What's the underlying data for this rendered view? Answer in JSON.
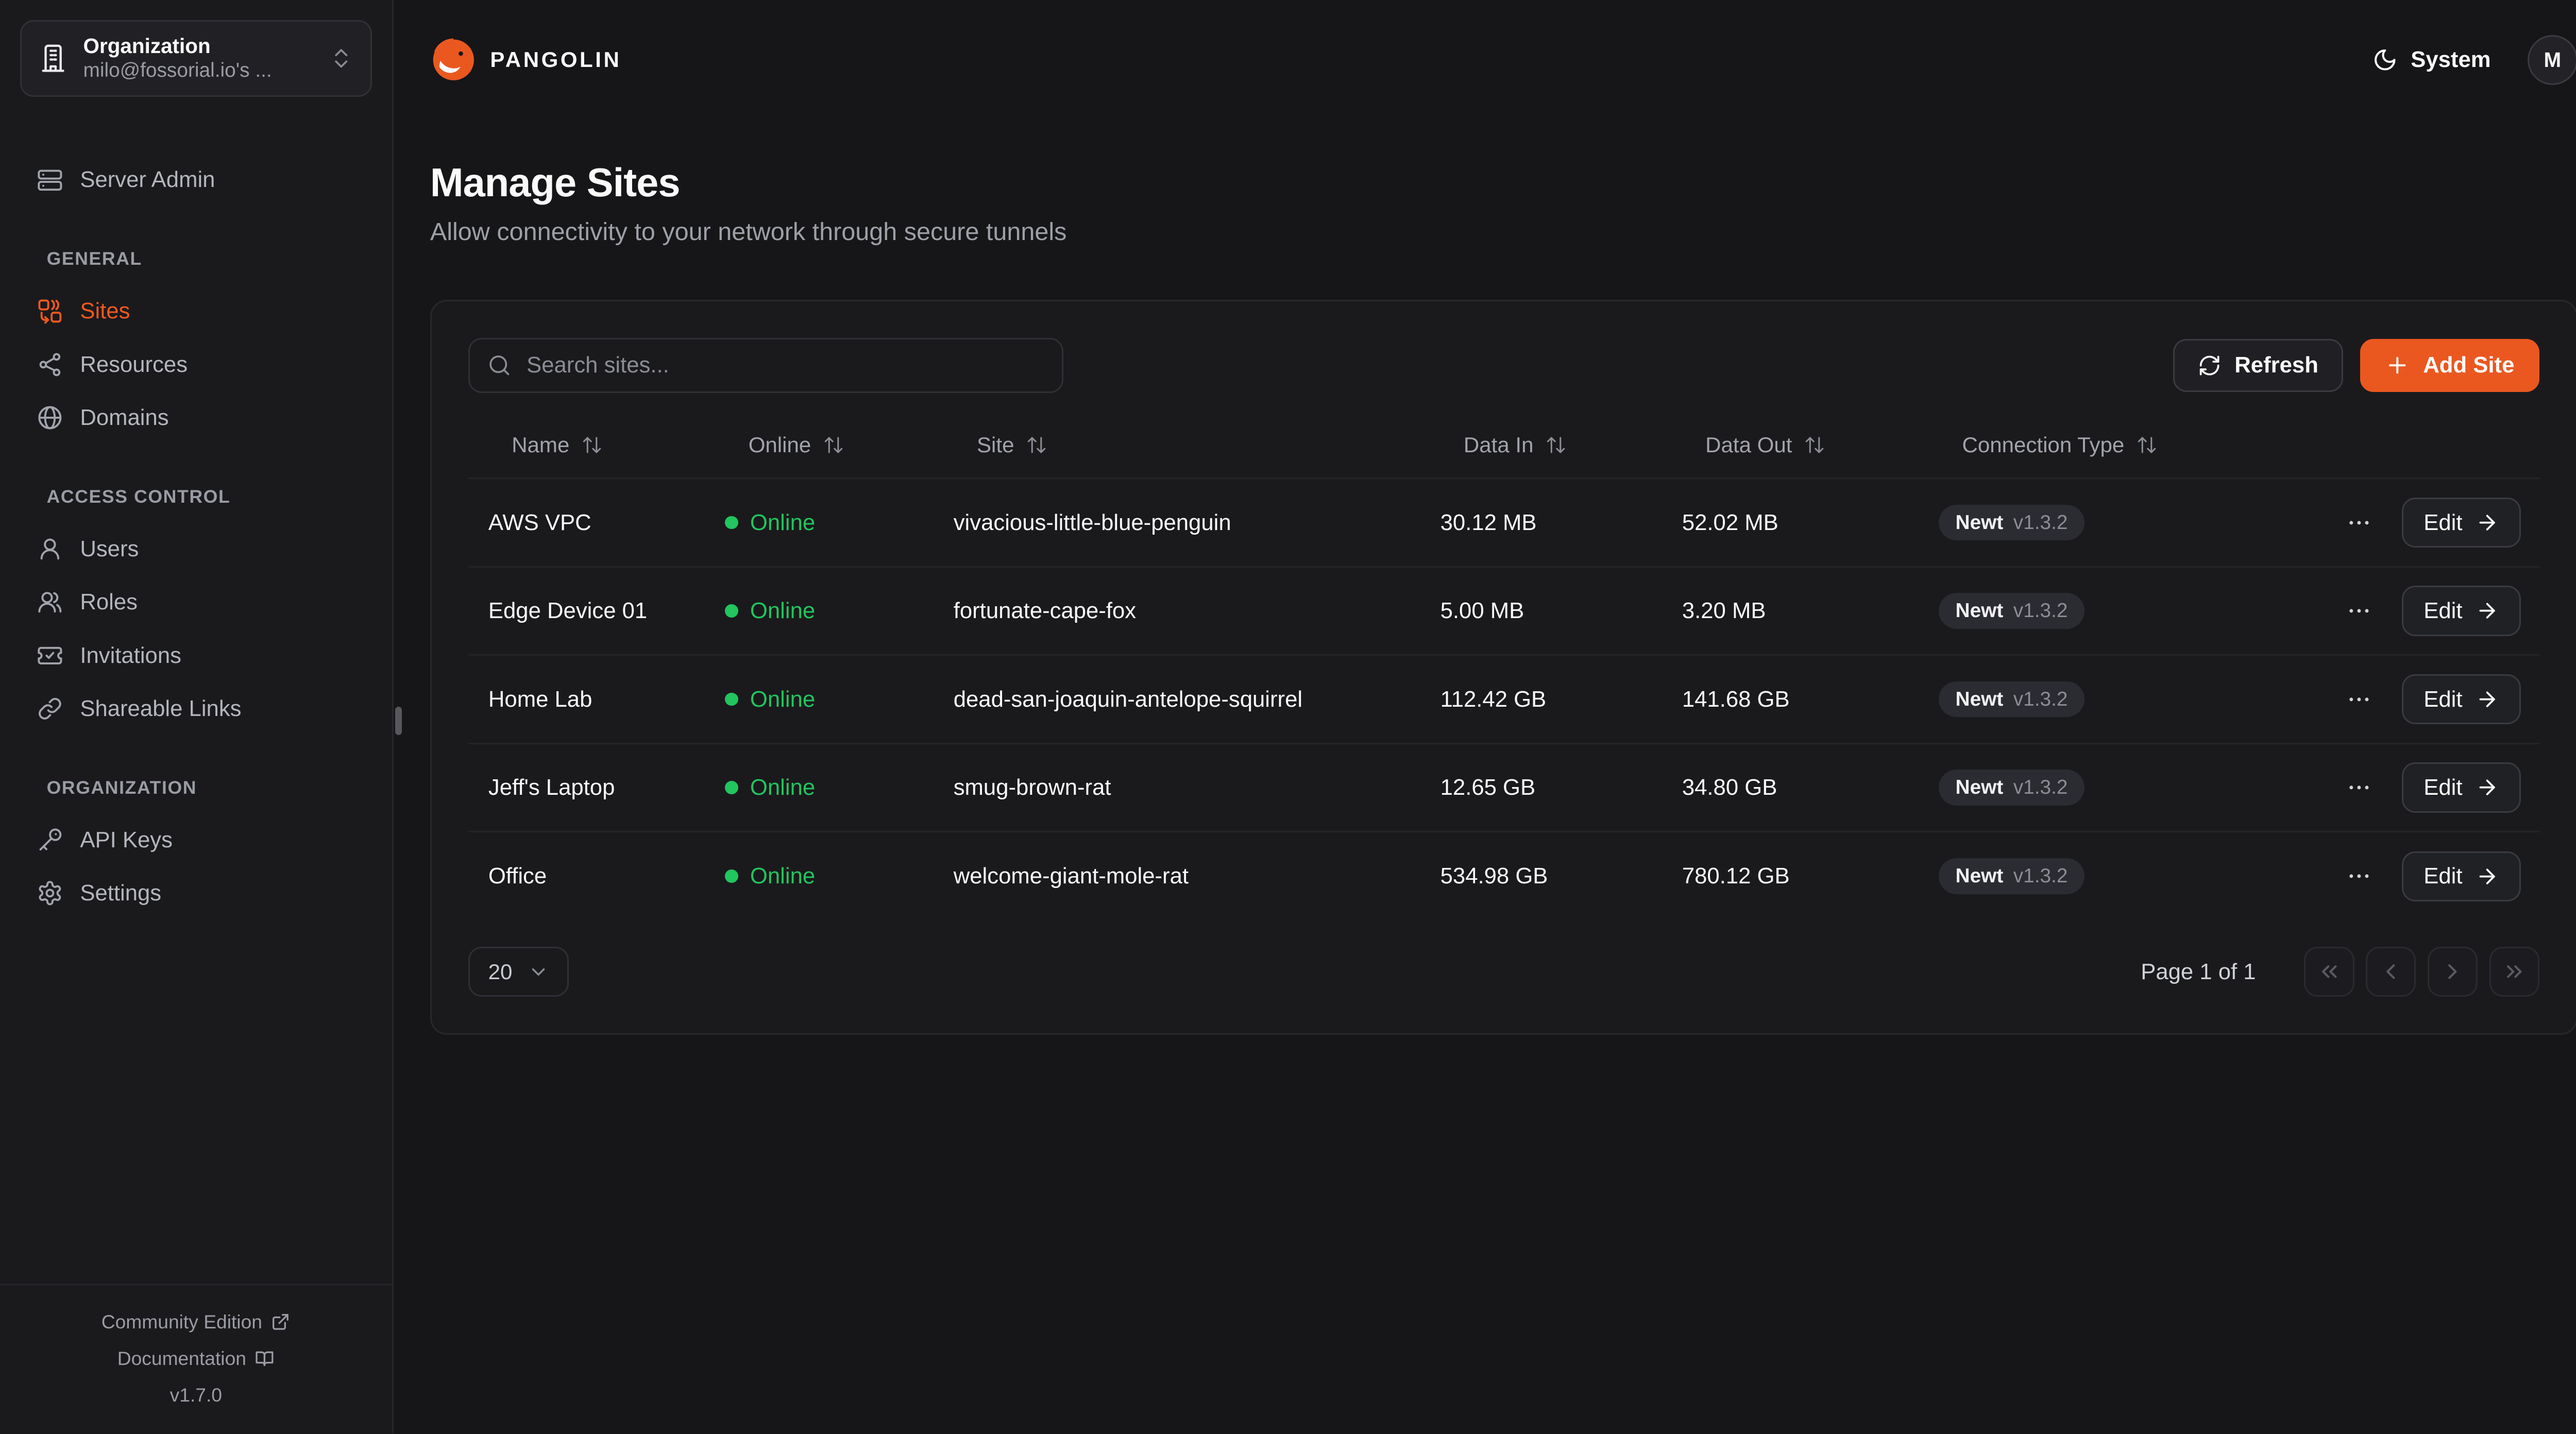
{
  "app": {
    "brand": "PANGOLIN",
    "theme_label": "System",
    "avatar_initial": "M"
  },
  "sidebar": {
    "org": {
      "label": "Organization",
      "value": "milo@fossorial.io's ..."
    },
    "server_admin_label": "Server Admin",
    "sections": [
      {
        "label": "GENERAL",
        "items": [
          {
            "label": "Sites",
            "icon": "combine-icon",
            "active": true
          },
          {
            "label": "Resources",
            "icon": "waypoints-icon",
            "active": false
          },
          {
            "label": "Domains",
            "icon": "globe-icon",
            "active": false
          }
        ]
      },
      {
        "label": "ACCESS CONTROL",
        "items": [
          {
            "label": "Users",
            "icon": "user-icon",
            "active": false
          },
          {
            "label": "Roles",
            "icon": "users-icon",
            "active": false
          },
          {
            "label": "Invitations",
            "icon": "ticket-check-icon",
            "active": false
          },
          {
            "label": "Shareable Links",
            "icon": "link-icon",
            "active": false
          }
        ]
      },
      {
        "label": "ORGANIZATION",
        "items": [
          {
            "label": "API Keys",
            "icon": "key-icon",
            "active": false
          },
          {
            "label": "Settings",
            "icon": "gear-icon",
            "active": false
          }
        ]
      }
    ],
    "footer": {
      "community": "Community Edition",
      "docs": "Documentation",
      "version": "v1.7.0"
    }
  },
  "page": {
    "title": "Manage Sites",
    "subtitle": "Allow connectivity to your network through secure tunnels"
  },
  "toolbar": {
    "search_placeholder": "Search sites...",
    "refresh_label": "Refresh",
    "add_site_label": "Add Site"
  },
  "table": {
    "columns": [
      "Name",
      "Online",
      "Site",
      "Data In",
      "Data Out",
      "Connection Type"
    ],
    "rows": [
      {
        "name": "AWS VPC",
        "status": "Online",
        "site": "vivacious-little-blue-penguin",
        "data_in": "30.12 MB",
        "data_out": "52.02 MB",
        "connection": "Newt",
        "version": "v1.3.2",
        "action": "Edit"
      },
      {
        "name": "Edge Device 01",
        "status": "Online",
        "site": "fortunate-cape-fox",
        "data_in": "5.00 MB",
        "data_out": "3.20 MB",
        "connection": "Newt",
        "version": "v1.3.2",
        "action": "Edit"
      },
      {
        "name": "Home Lab",
        "status": "Online",
        "site": "dead-san-joaquin-antelope-squirrel",
        "data_in": "112.42 GB",
        "data_out": "141.68 GB",
        "connection": "Newt",
        "version": "v1.3.2",
        "action": "Edit"
      },
      {
        "name": "Jeff's Laptop",
        "status": "Online",
        "site": "smug-brown-rat",
        "data_in": "12.65 GB",
        "data_out": "34.80 GB",
        "connection": "Newt",
        "version": "v1.3.2",
        "action": "Edit"
      },
      {
        "name": "Office",
        "status": "Online",
        "site": "welcome-giant-mole-rat",
        "data_in": "534.98 GB",
        "data_out": "780.12 GB",
        "connection": "Newt",
        "version": "v1.3.2",
        "action": "Edit"
      }
    ]
  },
  "pagination": {
    "page_size": "20",
    "page_info": "Page 1 of 1",
    "buttons": [
      "first-page",
      "previous-page",
      "next-page",
      "last-page"
    ]
  },
  "icons": {
    "search": "magnifier",
    "refresh": "refresh-cw",
    "add": "plus",
    "theme": "moon",
    "sort": "arrow-up-down",
    "org": "building",
    "edit_arrow": "arrow-right",
    "row_menu": "ellipsis"
  },
  "colors": {
    "accent": "#EA5820",
    "online": "#22C55E",
    "surface": "#1A1A1D",
    "background": "#161618"
  }
}
